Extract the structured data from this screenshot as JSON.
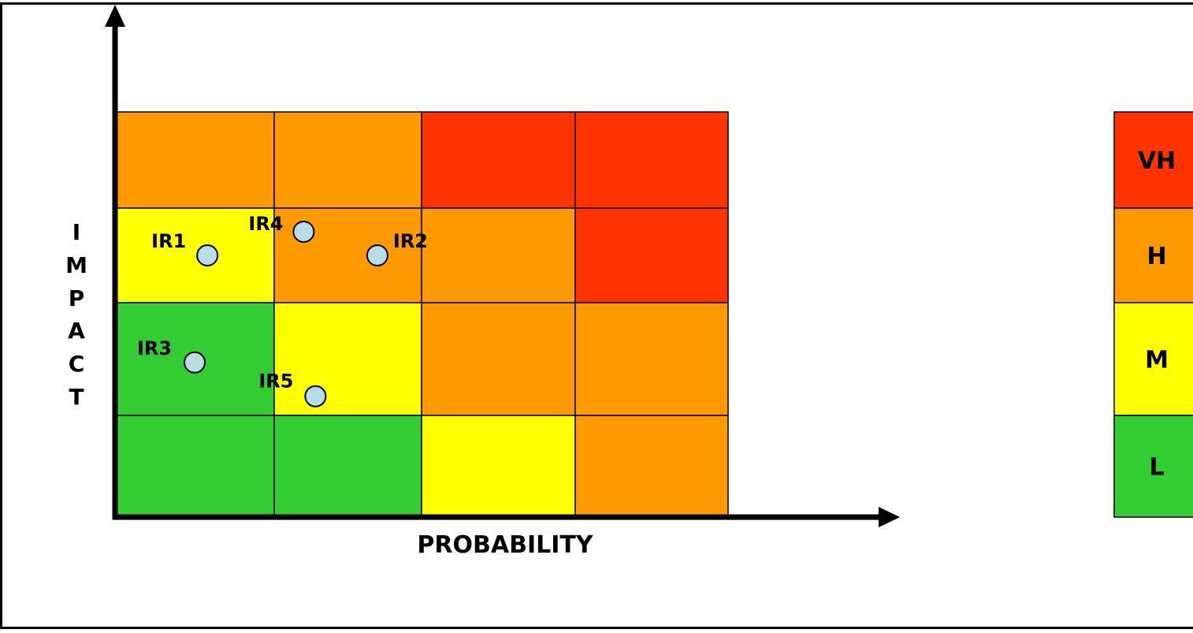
{
  "colors": {
    "L": "#33cc33",
    "M": "#ffff00",
    "H": "#ff9900",
    "VH": "#ff3300",
    "marker_fill": "#b8dde3",
    "grid_line": "#000000",
    "axis": "#000000"
  },
  "axes": {
    "x_label": "PROBABILITY",
    "y_label_letters": [
      "I",
      "M",
      "P",
      "A",
      "C",
      "T"
    ]
  },
  "matrix": {
    "rows_top_to_bottom": [
      [
        "H",
        "H",
        "VH",
        "VH"
      ],
      [
        "M",
        "H",
        "H",
        "VH"
      ],
      [
        "L",
        "M",
        "H",
        "H"
      ],
      [
        "L",
        "L",
        "M",
        "H"
      ]
    ]
  },
  "risks": [
    {
      "label": "IR1",
      "probability_col": 1,
      "probability_frac": 0.58,
      "impact_row": 3,
      "impact_frac": 0.5
    },
    {
      "label": "IR4",
      "probability_col": 2,
      "probability_frac": 0.2,
      "impact_row": 3,
      "impact_frac": 0.75
    },
    {
      "label": "IR2",
      "probability_col": 2,
      "probability_frac": 0.7,
      "impact_row": 3,
      "impact_frac": 0.5
    },
    {
      "label": "IR3",
      "probability_col": 1,
      "probability_frac": 0.5,
      "impact_row": 2,
      "impact_frac": 0.47
    },
    {
      "label": "IR5",
      "probability_col": 2,
      "probability_frac": 0.28,
      "impact_row": 2,
      "impact_frac": 0.17
    }
  ],
  "legend": [
    {
      "level": "VH",
      "label": "VH"
    },
    {
      "level": "H",
      "label": "H"
    },
    {
      "level": "M",
      "label": "M"
    },
    {
      "level": "L",
      "label": "L"
    }
  ]
}
